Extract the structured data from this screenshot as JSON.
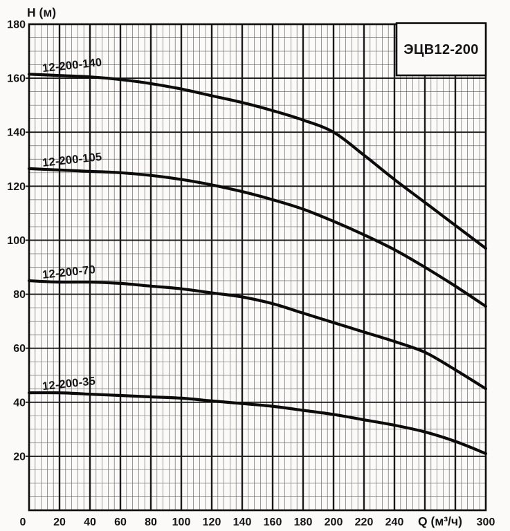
{
  "page": {
    "background": "#fbfaf8",
    "ink": "#111111",
    "minor_grid_color": "#6e6e6e",
    "major_grid_color": "#1a1a1a",
    "curve_color": "#0b0b0b"
  },
  "chart_data": {
    "type": "line",
    "title": "ЭЦВ12-200",
    "xlabel": "Q (м³/ч)",
    "ylabel": "H (м)",
    "xlim": [
      0,
      300
    ],
    "ylim": [
      0,
      180
    ],
    "grid": "both",
    "x_major_step": 20,
    "x_minor_step": 4,
    "y_major_step": 20,
    "y_minor_step": 5,
    "x_tick_labels": [
      0,
      20,
      40,
      60,
      80,
      100,
      120,
      140,
      160,
      180,
      200,
      220,
      240,
      300
    ],
    "y_tick_labels": [
      20,
      40,
      60,
      80,
      100,
      120,
      140,
      160,
      180
    ],
    "legend_position": "inline-curve-labels",
    "x": [
      0,
      20,
      40,
      60,
      80,
      100,
      120,
      140,
      160,
      180,
      200,
      220,
      240,
      260,
      280,
      300
    ],
    "series": [
      {
        "name": "12-200-140",
        "values": [
          161.5,
          161,
          160.5,
          159.5,
          158,
          156,
          153.5,
          151,
          148,
          144.5,
          140,
          131.5,
          122.5,
          114,
          105.5,
          97
        ]
      },
      {
        "name": "12-200-105",
        "values": [
          126.5,
          126,
          125.5,
          125,
          124,
          122.5,
          120.5,
          118,
          115,
          111.5,
          107,
          102,
          96.5,
          90,
          83,
          75.5
        ]
      },
      {
        "name": "12-200-70",
        "values": [
          85,
          84.5,
          84.5,
          84,
          83,
          82,
          80.5,
          79,
          76.5,
          73,
          69.5,
          66,
          62.5,
          58.5,
          52,
          45
        ]
      },
      {
        "name": "12-200-35",
        "values": [
          43.5,
          43.5,
          43,
          42.5,
          42,
          41.5,
          40.5,
          39.5,
          38.5,
          37,
          35.5,
          33.5,
          31.5,
          29,
          25.5,
          21
        ]
      }
    ]
  }
}
